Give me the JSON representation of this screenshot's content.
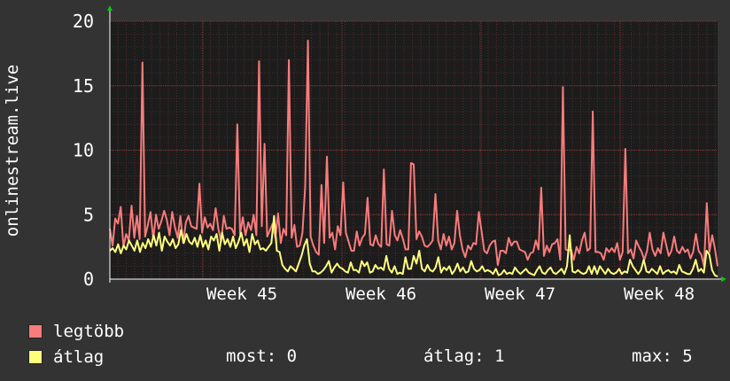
{
  "chart_data": {
    "type": "line",
    "ylabel": "onlinestream.live",
    "ylim": [
      0,
      20
    ],
    "yticks": [
      0,
      5,
      10,
      15,
      20
    ],
    "xticks": [
      "Week 45",
      "Week 46",
      "Week 47",
      "Week 48"
    ],
    "grid": true,
    "series": [
      {
        "name": "legtöbb",
        "color": "#f87c7c",
        "values": [
          3.9,
          2.6,
          4.7,
          4.3,
          5.6,
          2.5,
          3.5,
          3.0,
          5.7,
          3.2,
          4.9,
          3.1,
          16.8,
          3.3,
          4.2,
          5.2,
          3.1,
          5.0,
          3.9,
          4.5,
          5.3,
          4.6,
          3.4,
          5.2,
          4.0,
          3.2,
          4.9,
          2.8,
          4.4,
          4.9,
          4.1,
          4.0,
          3.9,
          7.4,
          3.6,
          4.8,
          4.0,
          4.3,
          3.8,
          5.5,
          3.9,
          2.9,
          4.9,
          3.9,
          4.0,
          3.9,
          3.4,
          12.0,
          3.5,
          4.8,
          3.4,
          4.4,
          3.8,
          5.0,
          3.4,
          16.9,
          4.1,
          10.5,
          3.3,
          3.8,
          4.3,
          3.2,
          5.1,
          2.8,
          3.9,
          3.4,
          17.0,
          3.2,
          4.2,
          2.5,
          2.6,
          3.6,
          7.2,
          18.5,
          3.3,
          2.6,
          2.1,
          1.9,
          7.3,
          2.8,
          9.5,
          3.2,
          3.6,
          2.3,
          4.1,
          3.4,
          7.5,
          3.6,
          2.9,
          2.2,
          2.2,
          3.7,
          2.6,
          3.2,
          3.5,
          6.3,
          2.7,
          2.6,
          3.4,
          2.7,
          2.5,
          8.5,
          2.7,
          2.6,
          5.3,
          3.4,
          3.0,
          3.8,
          3.1,
          2.3,
          2.3,
          9.0,
          8.9,
          3.1,
          3.7,
          3.3,
          2.6,
          2.5,
          2.7,
          3.0,
          6.6,
          3.0,
          2.3,
          3.5,
          2.6,
          3.3,
          2.3,
          2.8,
          5.3,
          3.4,
          2.3,
          1.7,
          2.6,
          2.3,
          2.8,
          2.7,
          5.2,
          3.7,
          2.2,
          2.0,
          2.6,
          2.9,
          3.0,
          1.1,
          2.2,
          2.2,
          2.0,
          3.2,
          2.6,
          2.9,
          2.9,
          2.3,
          2.2,
          2.1,
          1.5,
          2.0,
          2.1,
          3.0,
          2.3,
          7.1,
          1.8,
          2.6,
          2.1,
          2.7,
          2.8,
          3.1,
          1.5,
          14.9,
          2.3,
          2.2,
          2.3,
          1.5,
          2.5,
          2.0,
          3.0,
          3.6,
          2.2,
          2.4,
          13.0,
          2.1,
          2.1,
          2.0,
          1.5,
          2.4,
          2.1,
          2.4,
          2.1,
          2.8,
          1.5,
          2.1,
          10.1,
          2.0,
          2.3,
          1.6,
          3.0,
          2.5,
          2.1,
          1.5,
          2.2,
          3.6,
          2.3,
          1.8,
          2.4,
          2.0,
          3.6,
          2.7,
          1.8,
          2.2,
          3.3,
          2.2,
          2.0,
          2.5,
          2.1,
          2.3,
          1.6,
          2.1,
          3.5,
          2.2,
          1.9,
          1.0,
          5.9,
          2.1,
          3.4,
          2.4,
          1.0
        ]
      },
      {
        "name": "átlag",
        "color": "#ffff7c",
        "values": [
          2.2,
          2.4,
          2.1,
          2.7,
          2.0,
          2.6,
          2.3,
          3.0,
          2.6,
          2.2,
          3.0,
          2.1,
          2.8,
          2.4,
          3.1,
          2.5,
          3.4,
          2.6,
          3.6,
          2.2,
          3.3,
          2.9,
          2.6,
          3.1,
          2.4,
          2.7,
          3.8,
          2.8,
          3.5,
          2.9,
          2.7,
          3.2,
          2.5,
          3.4,
          2.5,
          3.0,
          2.3,
          3.3,
          3.0,
          3.5,
          2.2,
          3.6,
          2.7,
          3.1,
          2.5,
          3.3,
          2.4,
          2.9,
          3.6,
          2.6,
          3.1,
          2.1,
          3.5,
          2.7,
          3.0,
          2.3,
          2.4,
          2.2,
          2.5,
          2.8,
          4.9,
          2.2,
          2.1,
          1.1,
          0.8,
          0.6,
          1.0,
          0.8,
          0.6,
          1.2,
          1.8,
          2.6,
          3.1,
          1.2,
          0.6,
          0.6,
          0.4,
          0.5,
          0.7,
          1.0,
          1.4,
          0.5,
          0.9,
          1.2,
          0.9,
          0.8,
          0.6,
          0.5,
          1.3,
          0.7,
          0.7,
          0.5,
          1.4,
          1.0,
          1.3,
          0.5,
          0.6,
          1.1,
          0.8,
          0.9,
          0.7,
          1.8,
          0.8,
          0.5,
          1.0,
          0.4,
          0.5,
          0.4,
          1.7,
          0.8,
          0.8,
          1.8,
          1.2,
          2.2,
          0.8,
          0.6,
          1.1,
          0.7,
          0.6,
          0.9,
          1.7,
          0.5,
          0.9,
          0.7,
          1.0,
          0.4,
          0.7,
          1.2,
          0.6,
          0.9,
          0.5,
          0.6,
          1.4,
          0.8,
          0.6,
          0.7,
          1.0,
          0.6,
          0.7,
          0.6,
          0.4,
          0.8,
          0.3,
          0.4,
          0.7,
          0.4,
          0.5,
          0.4,
          0.9,
          0.6,
          0.4,
          0.6,
          0.8,
          0.5,
          0.4,
          0.3,
          0.7,
          1.0,
          0.5,
          0.4,
          0.7,
          0.9,
          0.5,
          0.4,
          0.6,
          0.8,
          0.4,
          1.0,
          3.4,
          0.6,
          0.5,
          0.7,
          0.5,
          0.4,
          0.5,
          1.0,
          0.4,
          1.0,
          0.4,
          1.0,
          0.7,
          0.4,
          0.8,
          0.5,
          0.4,
          0.5,
          0.8,
          0.4,
          0.6,
          0.5,
          1.5,
          1.0,
          0.7,
          0.4,
          0.7,
          1.5,
          0.6,
          0.5,
          0.8,
          0.6,
          0.4,
          1.0,
          0.4,
          0.6,
          0.7,
          0.5,
          0.6,
          0.4,
          1.1,
          0.6,
          0.5,
          0.4,
          0.4,
          0.8,
          1.5,
          0.6,
          0.8,
          0.5,
          2.2,
          1.9,
          0.7,
          0.3,
          0.2
        ]
      }
    ],
    "stats": {
      "most_label": "most:",
      "most_value": "0",
      "atlag_label": "átlag:",
      "atlag_value": "1",
      "max_label": "max:",
      "max_value": "5"
    }
  }
}
